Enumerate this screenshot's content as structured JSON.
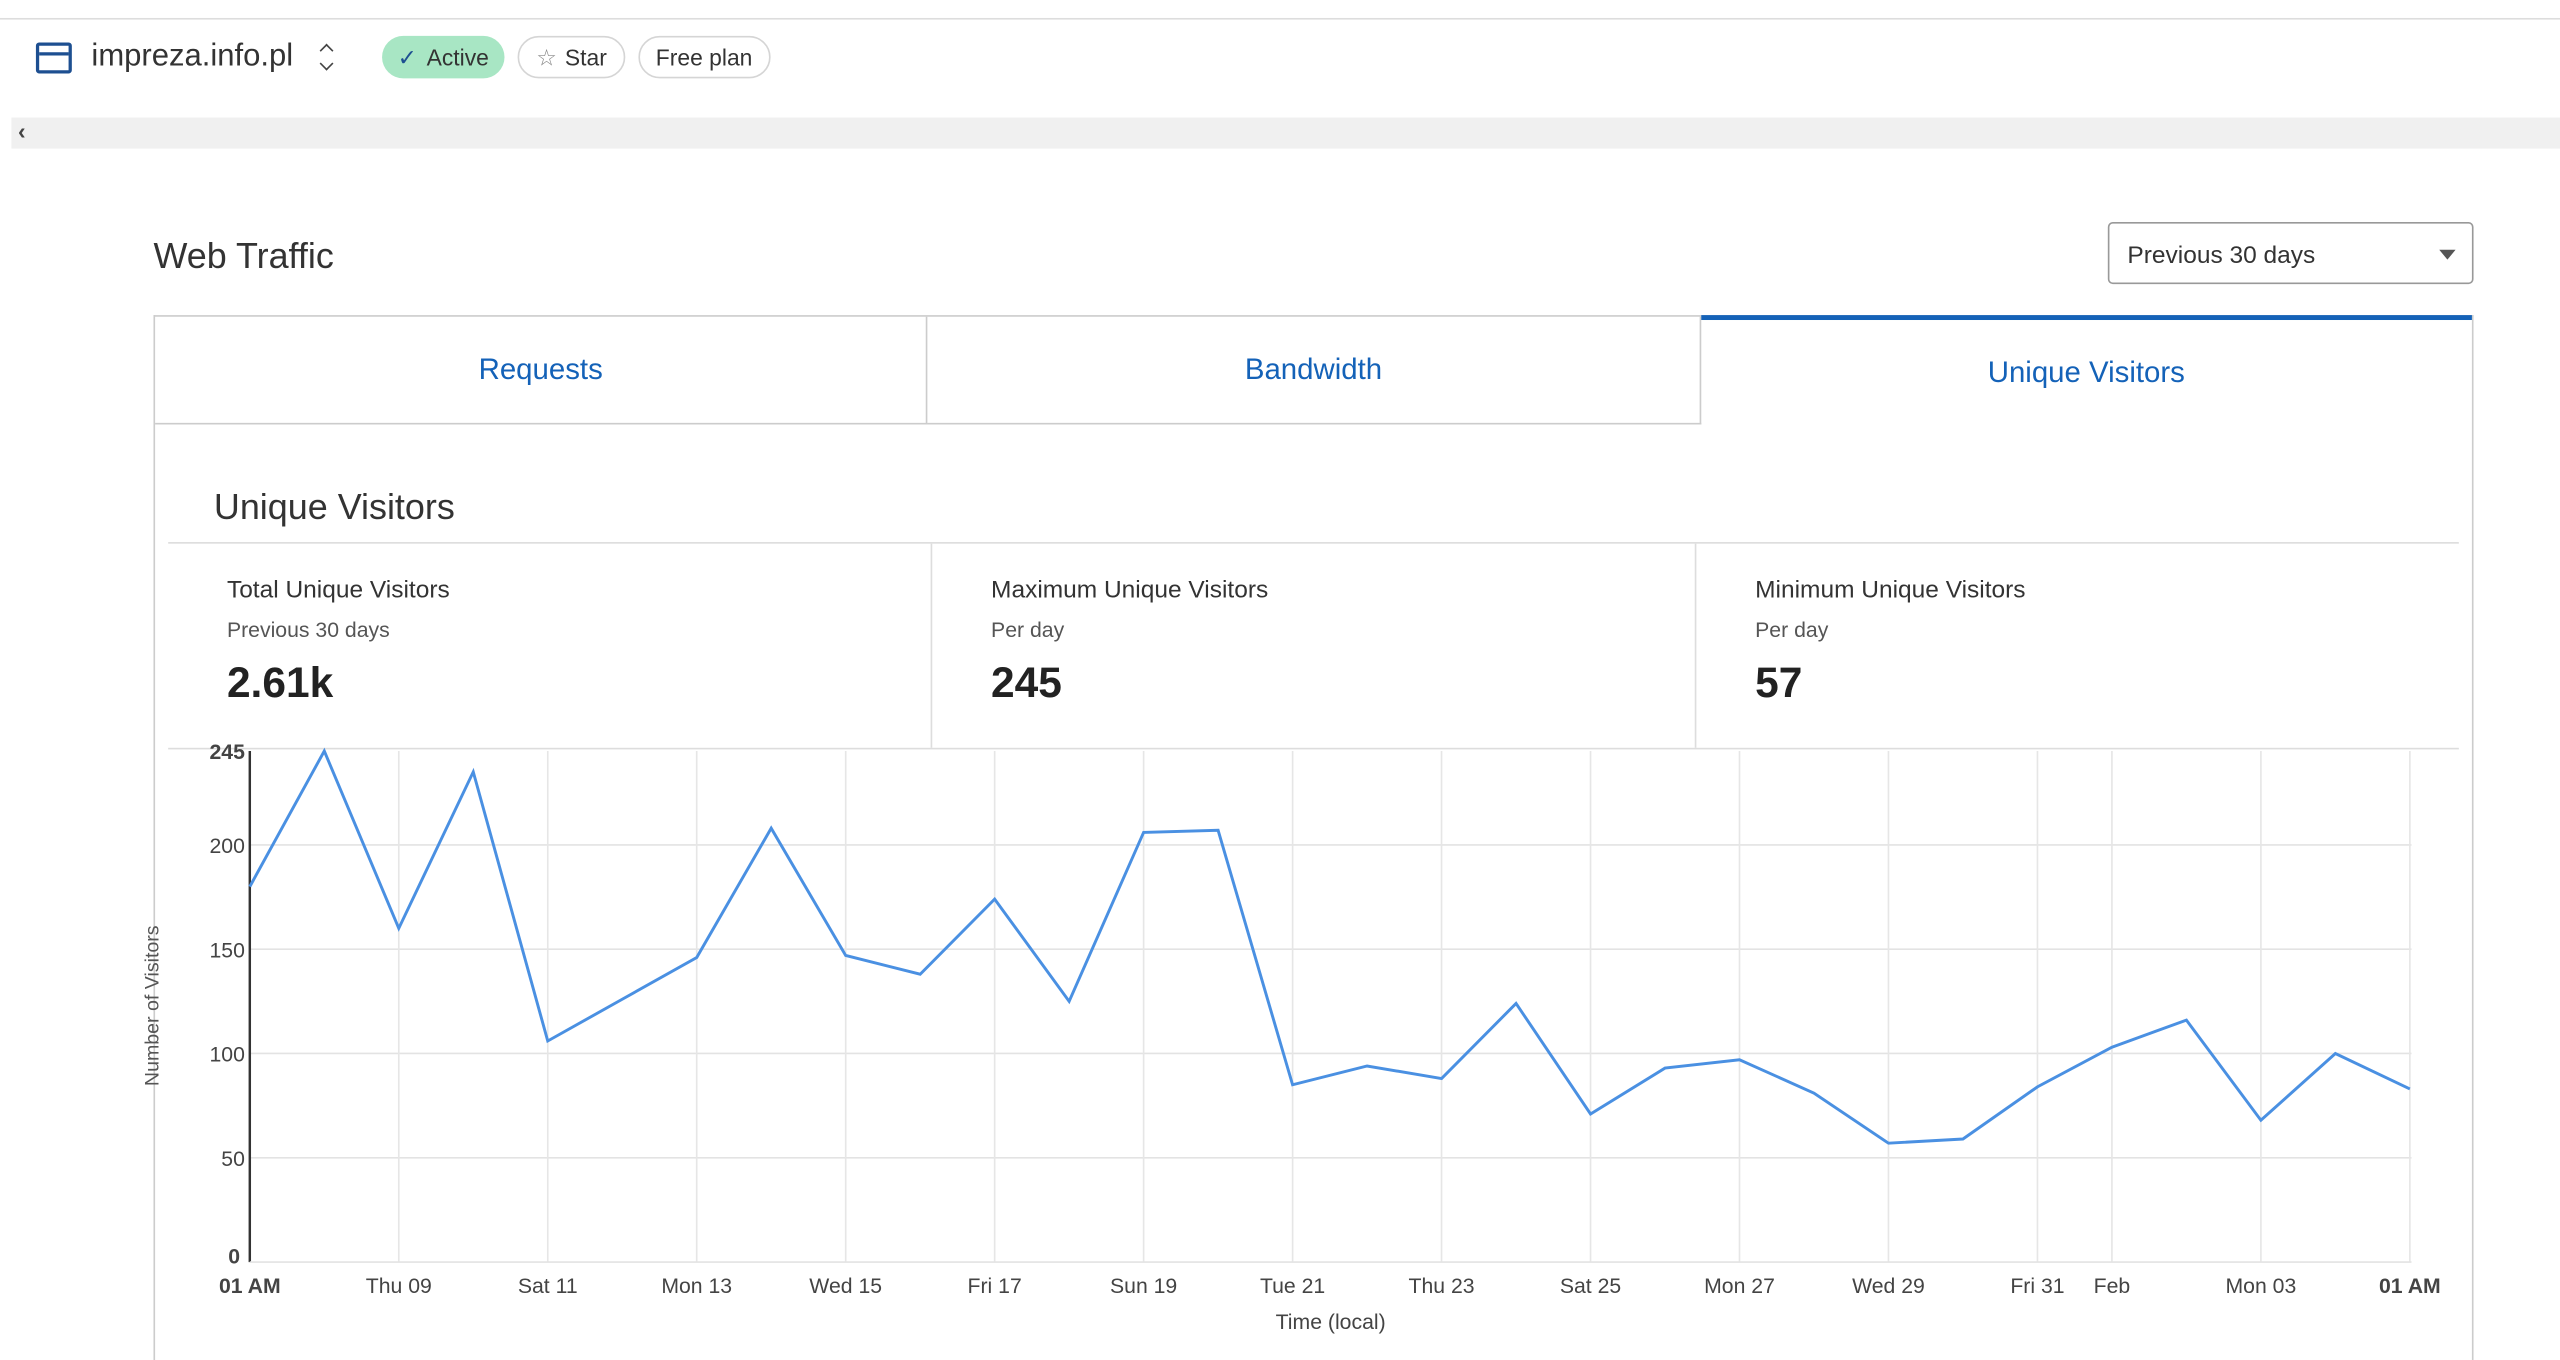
{
  "header": {
    "site_name": "impreza.info.pl",
    "status": "Active",
    "star_label": "Star",
    "plan": "Free plan",
    "icons": [
      "browser-window-icon",
      "up-down-chevron-icon",
      "check-icon",
      "star-icon",
      "chevron-left-icon"
    ]
  },
  "page": {
    "title": "Web Traffic",
    "range_select": "Previous 30 days"
  },
  "tabs": [
    {
      "label": "Requests"
    },
    {
      "label": "Bandwidth"
    },
    {
      "label": "Unique Visitors",
      "selected": true
    }
  ],
  "section_title": "Unique Visitors",
  "stats": [
    {
      "label": "Total Unique Visitors",
      "sub": "Previous 30 days",
      "value": "2.61k"
    },
    {
      "label": "Maximum Unique Visitors",
      "sub": "Per day",
      "value": "245"
    },
    {
      "label": "Minimum Unique Visitors",
      "sub": "Per day",
      "value": "57"
    }
  ],
  "colors": {
    "accent": "#1462b8",
    "line": "#4a90e2",
    "active_badge": "#a8e6c4"
  },
  "chart_data": {
    "type": "line",
    "xlabel": "Time (local)",
    "ylabel": "Number of Visitors",
    "ylim": [
      0,
      245
    ],
    "yticks": [
      0,
      50,
      100,
      150,
      200,
      245
    ],
    "grid": true,
    "x": [
      "Jan 07",
      "Jan 08",
      "Jan 09",
      "Jan 10",
      "Jan 11",
      "Jan 12",
      "Jan 13",
      "Jan 14",
      "Jan 15",
      "Jan 16",
      "Jan 17",
      "Jan 18",
      "Jan 19",
      "Jan 20",
      "Jan 21",
      "Jan 22",
      "Jan 23",
      "Jan 24",
      "Jan 25",
      "Jan 26",
      "Jan 27",
      "Jan 28",
      "Jan 29",
      "Jan 30",
      "Jan 31",
      "Feb 01",
      "Feb 02",
      "Feb 03",
      "Feb 04",
      "Feb 05"
    ],
    "values": [
      180,
      245,
      160,
      235,
      106,
      126,
      146,
      208,
      147,
      138,
      174,
      125,
      206,
      207,
      85,
      94,
      88,
      124,
      71,
      93,
      97,
      81,
      57,
      59,
      84,
      103,
      116,
      68,
      100,
      83
    ],
    "xticks": [
      {
        "i": 0,
        "label": "01 AM",
        "bold": true
      },
      {
        "i": 2,
        "label": "Thu 09"
      },
      {
        "i": 4,
        "label": "Sat 11"
      },
      {
        "i": 6,
        "label": "Mon 13"
      },
      {
        "i": 8,
        "label": "Wed 15"
      },
      {
        "i": 10,
        "label": "Fri 17"
      },
      {
        "i": 12,
        "label": "Sun 19"
      },
      {
        "i": 14,
        "label": "Tue 21"
      },
      {
        "i": 16,
        "label": "Thu 23"
      },
      {
        "i": 18,
        "label": "Sat 25"
      },
      {
        "i": 20,
        "label": "Mon 27"
      },
      {
        "i": 22,
        "label": "Wed 29"
      },
      {
        "i": 24,
        "label": "Fri 31"
      },
      {
        "i": 25,
        "label": "Feb"
      },
      {
        "i": 27,
        "label": "Mon 03"
      },
      {
        "i": 29,
        "label": "01 AM",
        "bold": true
      }
    ]
  }
}
